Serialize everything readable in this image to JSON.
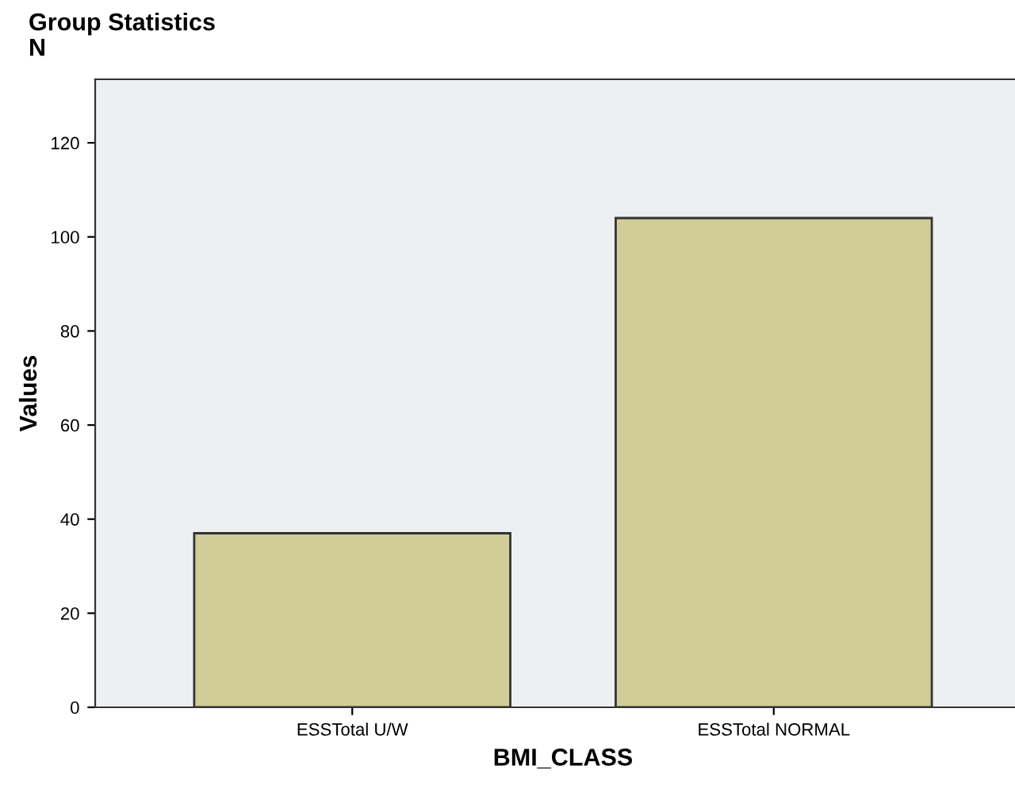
{
  "chart_data": {
    "type": "bar",
    "title": "Group Statistics",
    "subtitle": "N",
    "xlabel": "BMI_CLASS",
    "ylabel": "Values",
    "categories": [
      "ESSTotal U/W",
      "ESSTotal NORMAL"
    ],
    "values": [
      37,
      104
    ],
    "color": "#d0cd98",
    "ylim": [
      0,
      133.5
    ],
    "yticks": [
      0,
      20,
      40,
      60,
      80,
      100,
      120
    ],
    "grid": false
  }
}
